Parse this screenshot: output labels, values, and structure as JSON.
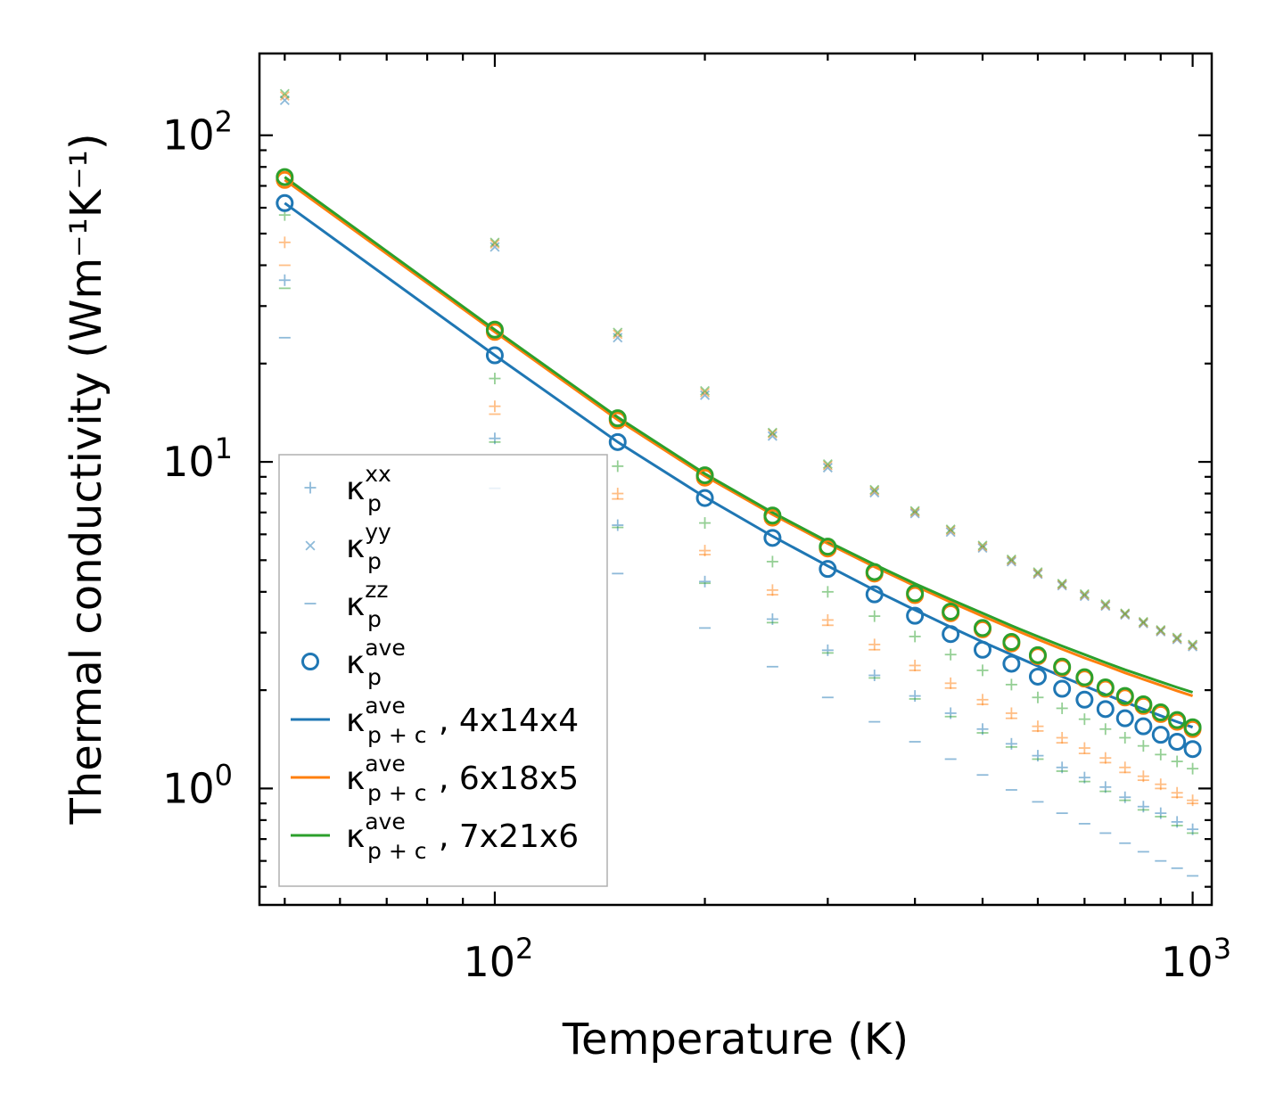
{
  "chart_data": {
    "type": "scatter",
    "title": "",
    "xlabel": "Temperature (K)",
    "ylabel": "Thermal conductivity (Wm⁻¹K⁻¹)",
    "xscale": "log",
    "yscale": "log",
    "xlim": [
      46,
      1065
    ],
    "ylim": [
      0.44,
      178
    ],
    "xticks": [
      {
        "value": 100,
        "base": "10",
        "exp": "2"
      },
      {
        "value": 1000,
        "base": "10",
        "exp": "3"
      }
    ],
    "yticks": [
      {
        "value": 1,
        "base": "10",
        "exp": "0"
      },
      {
        "value": 10,
        "base": "10",
        "exp": "1"
      },
      {
        "value": 100,
        "base": "10",
        "exp": "2"
      }
    ],
    "x": [
      50,
      100,
      150,
      200,
      250,
      300,
      350,
      400,
      450,
      500,
      550,
      600,
      650,
      700,
      750,
      800,
      850,
      900,
      950,
      1000
    ],
    "series": [
      {
        "group": "xx",
        "name": "κp xx (4x14x4)",
        "marker": "plus",
        "color": "#1f77b4",
        "opacity": 0.5,
        "values": [
          36,
          11.8,
          6.4,
          4.3,
          3.3,
          2.65,
          2.22,
          1.92,
          1.7,
          1.52,
          1.37,
          1.26,
          1.16,
          1.08,
          1.01,
          0.94,
          0.88,
          0.84,
          0.79,
          0.75
        ]
      },
      {
        "group": "xx",
        "name": "κp xx (6x18x5)",
        "marker": "plus",
        "color": "#ff7f0e",
        "opacity": 0.5,
        "values": [
          47,
          14.8,
          8.0,
          5.35,
          4.05,
          3.28,
          2.76,
          2.38,
          2.1,
          1.87,
          1.7,
          1.55,
          1.43,
          1.33,
          1.24,
          1.16,
          1.09,
          1.03,
          0.97,
          0.92
        ]
      },
      {
        "group": "xx",
        "name": "κp xx (7x21x6)",
        "marker": "plus",
        "color": "#2ca02c",
        "opacity": 0.5,
        "values": [
          57,
          18,
          9.7,
          6.5,
          4.95,
          4.0,
          3.37,
          2.92,
          2.57,
          2.3,
          2.08,
          1.9,
          1.76,
          1.63,
          1.52,
          1.43,
          1.35,
          1.27,
          1.21,
          1.15
        ]
      },
      {
        "group": "yy",
        "name": "κp yy (4x14x4)",
        "marker": "x",
        "color": "#1f77b4",
        "opacity": 0.5,
        "values": [
          128,
          45.5,
          24,
          16.0,
          12.0,
          9.6,
          8.05,
          6.95,
          6.1,
          5.45,
          4.95,
          4.53,
          4.18,
          3.88,
          3.62,
          3.4,
          3.2,
          3.02,
          2.86,
          2.72
        ]
      },
      {
        "group": "yy",
        "name": "κp yy (6x18x5)",
        "marker": "x",
        "color": "#ff7f0e",
        "opacity": 0.5,
        "values": [
          132,
          46.5,
          24.6,
          16.3,
          12.2,
          9.75,
          8.15,
          7.02,
          6.17,
          5.5,
          4.99,
          4.56,
          4.21,
          3.91,
          3.64,
          3.42,
          3.22,
          3.04,
          2.88,
          2.74
        ]
      },
      {
        "group": "yy",
        "name": "κp yy (7x21x6)",
        "marker": "x",
        "color": "#2ca02c",
        "opacity": 0.5,
        "values": [
          134,
          47,
          24.9,
          16.5,
          12.3,
          9.85,
          8.22,
          7.08,
          6.22,
          5.55,
          5.03,
          4.6,
          4.24,
          3.94,
          3.67,
          3.44,
          3.24,
          3.06,
          2.9,
          2.76
        ]
      },
      {
        "group": "zz",
        "name": "κp zz (4x14x4)",
        "marker": "minus",
        "color": "#1f77b4",
        "opacity": 0.5,
        "values": [
          24,
          8.3,
          4.55,
          3.1,
          2.36,
          1.9,
          1.6,
          1.39,
          1.23,
          1.1,
          0.99,
          0.91,
          0.84,
          0.78,
          0.73,
          0.68,
          0.64,
          0.6,
          0.57,
          0.54
        ]
      },
      {
        "group": "zz",
        "name": "κp zz (6x18x5)",
        "marker": "minus",
        "color": "#ff7f0e",
        "opacity": 0.5,
        "values": [
          40,
          14,
          7.7,
          5.2,
          3.92,
          3.16,
          2.66,
          2.3,
          2.03,
          1.81,
          1.64,
          1.5,
          1.38,
          1.28,
          1.2,
          1.12,
          1.06,
          1.0,
          0.94,
          0.9
        ]
      },
      {
        "group": "zz",
        "name": "κp zz (7x21x6)",
        "marker": "minus",
        "color": "#2ca02c",
        "opacity": 0.5,
        "values": [
          34,
          11.5,
          6.3,
          4.25,
          3.22,
          2.6,
          2.18,
          1.88,
          1.66,
          1.48,
          1.34,
          1.23,
          1.13,
          1.05,
          0.98,
          0.92,
          0.86,
          0.82,
          0.77,
          0.73
        ]
      },
      {
        "group": "ave",
        "name": "κp ave (4x14x4)",
        "marker": "circle",
        "color": "#1f77b4",
        "opacity": 1,
        "values": [
          62,
          21.2,
          11.5,
          7.75,
          5.85,
          4.7,
          3.93,
          3.38,
          2.97,
          2.66,
          2.41,
          2.2,
          2.02,
          1.87,
          1.75,
          1.64,
          1.55,
          1.46,
          1.39,
          1.32
        ]
      },
      {
        "group": "ave",
        "name": "κp ave (6x18x5)",
        "marker": "circle",
        "color": "#ff7f0e",
        "opacity": 1,
        "values": [
          73,
          25.0,
          13.4,
          8.95,
          6.75,
          5.43,
          4.55,
          3.91,
          3.44,
          3.07,
          2.78,
          2.54,
          2.34,
          2.17,
          2.02,
          1.9,
          1.79,
          1.69,
          1.6,
          1.52
        ]
      },
      {
        "group": "ave",
        "name": "κp ave (7x21x6)",
        "marker": "circle",
        "color": "#2ca02c",
        "opacity": 1,
        "values": [
          74.5,
          25.4,
          13.6,
          9.1,
          6.85,
          5.5,
          4.6,
          3.96,
          3.48,
          3.1,
          2.81,
          2.56,
          2.36,
          2.19,
          2.04,
          1.92,
          1.81,
          1.71,
          1.62,
          1.54
        ]
      },
      {
        "group": "pc",
        "name": "κp+c ave, 4x14x4",
        "marker": "line",
        "color": "#1f77b4",
        "opacity": 1,
        "values": [
          62,
          21.2,
          11.5,
          7.8,
          5.92,
          4.8,
          4.05,
          3.52,
          3.12,
          2.81,
          2.57,
          2.37,
          2.2,
          2.06,
          1.94,
          1.84,
          1.75,
          1.67,
          1.6,
          1.54
        ]
      },
      {
        "group": "pc",
        "name": "κp+c ave, 6x18x5",
        "marker": "line",
        "color": "#ff7f0e",
        "opacity": 1,
        "values": [
          73,
          25.0,
          13.45,
          9.05,
          6.9,
          5.62,
          4.77,
          4.17,
          3.72,
          3.37,
          3.09,
          2.86,
          2.67,
          2.51,
          2.38,
          2.26,
          2.16,
          2.07,
          1.99,
          1.92
        ]
      },
      {
        "group": "pc",
        "name": "κp+c ave, 7x21x6",
        "marker": "line",
        "color": "#2ca02c",
        "opacity": 1,
        "values": [
          74.5,
          25.4,
          13.7,
          9.2,
          7.0,
          5.7,
          4.85,
          4.24,
          3.79,
          3.44,
          3.15,
          2.92,
          2.73,
          2.57,
          2.43,
          2.31,
          2.21,
          2.12,
          2.04,
          1.97
        ]
      }
    ],
    "legend": {
      "placement": "lower-left",
      "entries": [
        {
          "marker": "plus",
          "color": "#1f77b4",
          "symbol": "κ",
          "sub": "p",
          "sup": "xx",
          "suffix": ""
        },
        {
          "marker": "x",
          "color": "#1f77b4",
          "symbol": "κ",
          "sub": "p",
          "sup": "yy",
          "suffix": ""
        },
        {
          "marker": "minus",
          "color": "#1f77b4",
          "symbol": "κ",
          "sub": "p",
          "sup": "zz",
          "suffix": ""
        },
        {
          "marker": "circle",
          "color": "#1f77b4",
          "symbol": "κ",
          "sub": "p",
          "sup": "ave",
          "suffix": ""
        },
        {
          "marker": "line",
          "color": "#1f77b4",
          "symbol": "κ",
          "sub": "p + c",
          "sup": "ave",
          "suffix": ", 4x14x4"
        },
        {
          "marker": "line",
          "color": "#ff7f0e",
          "symbol": "κ",
          "sub": "p + c",
          "sup": "ave",
          "suffix": ", 6x18x5"
        },
        {
          "marker": "line",
          "color": "#2ca02c",
          "symbol": "κ",
          "sub": "p + c",
          "sup": "ave",
          "suffix": ", 7x21x6"
        }
      ]
    }
  }
}
